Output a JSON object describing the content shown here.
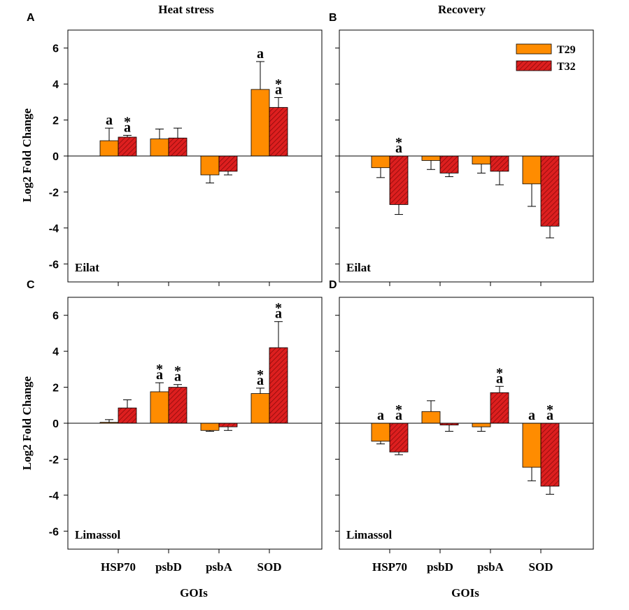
{
  "colors": {
    "t29": "#ff8c00",
    "t32": "#dd1f1f",
    "t32_hatch": "#8a0a0a",
    "axis": "#000000"
  },
  "columns": {
    "left_title": "Heat stress",
    "right_title": "Recovery"
  },
  "xlabel": "GOIs",
  "ylabel": "Log2 Fold Change",
  "legend": [
    "T29",
    "T32"
  ],
  "chart_data": [
    {
      "type": "bar",
      "panel": "A",
      "location": "Eilat",
      "categories": [
        "HSP70",
        "psbD",
        "psbA",
        "SOD"
      ],
      "ylim": [
        -7,
        7
      ],
      "yticks": [
        -6,
        -4,
        -2,
        0,
        2,
        4,
        6
      ],
      "series": [
        {
          "name": "T29",
          "values": [
            0.85,
            0.95,
            -1.05,
            3.7
          ],
          "errors": [
            0.7,
            0.55,
            0.45,
            1.55
          ],
          "labels": [
            "a",
            "",
            "",
            "a"
          ]
        },
        {
          "name": "T32",
          "values": [
            1.05,
            1.0,
            -0.85,
            2.7
          ],
          "errors": [
            0.1,
            0.55,
            0.2,
            0.55
          ],
          "labels": [
            "*a",
            "",
            "",
            "*a"
          ]
        }
      ]
    },
    {
      "type": "bar",
      "panel": "B",
      "location": "Eilat",
      "categories": [
        "HSP70",
        "psbD",
        "psbA",
        "SOD"
      ],
      "ylim": [
        -7,
        7
      ],
      "yticks": [
        -6,
        -4,
        -2,
        0,
        2,
        4,
        6
      ],
      "series": [
        {
          "name": "T29",
          "values": [
            -0.65,
            -0.25,
            -0.45,
            -1.55
          ],
          "errors": [
            0.55,
            0.5,
            0.5,
            1.25
          ],
          "labels": [
            "",
            "",
            "",
            ""
          ]
        },
        {
          "name": "T32",
          "values": [
            -2.7,
            -0.95,
            -0.85,
            -3.9
          ],
          "errors": [
            0.55,
            0.2,
            0.75,
            0.65
          ],
          "labels": [
            "*a",
            "",
            "",
            ""
          ]
        }
      ]
    },
    {
      "type": "bar",
      "panel": "C",
      "location": "Limassol",
      "categories": [
        "HSP70",
        "psbD",
        "psbA",
        "SOD"
      ],
      "ylim": [
        -7,
        7
      ],
      "yticks": [
        -6,
        -4,
        -2,
        0,
        2,
        4,
        6
      ],
      "series": [
        {
          "name": "T29",
          "values": [
            0.05,
            1.75,
            -0.4,
            1.65
          ],
          "errors": [
            0.15,
            0.5,
            0.05,
            0.3
          ],
          "labels": [
            "",
            "*a",
            "",
            "*a"
          ]
        },
        {
          "name": "T32",
          "values": [
            0.85,
            2.0,
            -0.2,
            4.2
          ],
          "errors": [
            0.45,
            0.15,
            0.2,
            1.45
          ],
          "labels": [
            "",
            "*a",
            "",
            "*a"
          ]
        }
      ]
    },
    {
      "type": "bar",
      "panel": "D",
      "location": "Limassol",
      "categories": [
        "HSP70",
        "psbD",
        "psbA",
        "SOD"
      ],
      "ylim": [
        -7,
        7
      ],
      "yticks": [
        -6,
        -4,
        -2,
        0,
        2,
        4,
        6
      ],
      "series": [
        {
          "name": "T29",
          "values": [
            -1.0,
            0.65,
            -0.2,
            -2.45
          ],
          "errors": [
            0.15,
            0.6,
            0.25,
            0.75
          ],
          "labels": [
            "a",
            "",
            "",
            "a"
          ]
        },
        {
          "name": "T32",
          "values": [
            -1.6,
            -0.1,
            1.7,
            -3.5
          ],
          "errors": [
            0.15,
            0.35,
            0.35,
            0.45
          ],
          "labels": [
            "*a",
            "",
            "*a",
            "*a"
          ]
        }
      ]
    }
  ]
}
